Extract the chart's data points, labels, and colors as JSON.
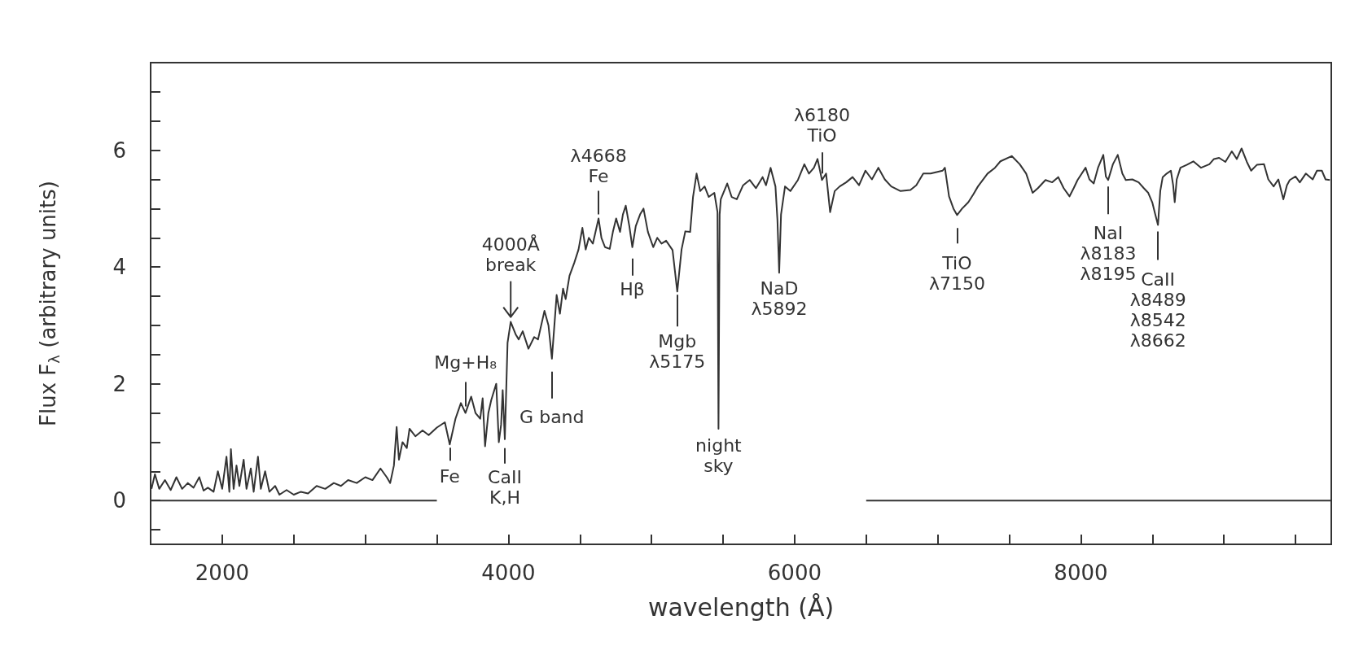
{
  "chart_data": {
    "type": "line",
    "xlabel": "wavelength (Å)",
    "ylabel": "Flux F$_{λ}$ (arbitrary units)",
    "xlim": [
      1500,
      9750
    ],
    "ylim": [
      -0.75,
      7.5
    ],
    "xticks": [
      {
        "value": 1500,
        "label": null
      },
      2000,
      {
        "value": 2500,
        "label": null
      },
      {
        "value": 3000,
        "label": null
      },
      {
        "value": 3500,
        "label": null
      },
      4000,
      {
        "value": 4500,
        "label": null
      },
      {
        "value": 5000,
        "label": null
      },
      {
        "value": 5500,
        "label": null
      },
      6000,
      {
        "value": 6500,
        "label": null
      },
      {
        "value": 7000,
        "label": null
      },
      {
        "value": 7500,
        "label": null
      },
      8000,
      {
        "value": 8500,
        "label": null
      },
      {
        "value": 9000,
        "label": null
      },
      {
        "value": 9500,
        "label": null
      }
    ],
    "yticks": [
      {
        "value": -0.5,
        "label": null
      },
      0,
      {
        "value": 0.5,
        "label": null
      },
      {
        "value": 1,
        "label": null
      },
      {
        "value": 1.5,
        "label": null
      },
      2,
      {
        "value": 2.5,
        "label": null
      },
      {
        "value": 3,
        "label": null
      },
      {
        "value": 3.5,
        "label": null
      },
      4,
      {
        "value": 4.5,
        "label": null
      },
      {
        "value": 5,
        "label": null
      },
      {
        "value": 5.5,
        "label": null
      },
      6,
      {
        "value": 6.5,
        "label": null
      },
      {
        "value": 7,
        "label": null
      }
    ],
    "marker": "none",
    "line_style": "solid",
    "grid": false,
    "series": [
      {
        "color": "#333333",
        "x": [
          1506,
          1530,
          1560,
          1600,
          1640,
          1680,
          1720,
          1760,
          1800,
          1840,
          1870,
          1900,
          1940,
          1970,
          2000,
          2030,
          2050,
          2061,
          2080,
          2100,
          2120,
          2150,
          2170,
          2200,
          2220,
          2250,
          2270,
          2300,
          2330,
          2370,
          2400,
          2450,
          2500,
          2550,
          2600,
          2660,
          2720,
          2780,
          2830,
          2880,
          2940,
          3000,
          3050,
          3106,
          3150,
          3174,
          3200,
          3219,
          3235,
          3260,
          3290,
          3309,
          3350,
          3400,
          3443,
          3500,
          3556,
          3590,
          3630,
          3668,
          3700,
          3740,
          3770,
          3803,
          3820,
          3837,
          3860,
          3880,
          3915,
          3933,
          3949,
          3960,
          3975,
          3994,
          4016,
          4050,
          4072,
          4100,
          4140,
          4180,
          4207,
          4252,
          4280,
          4304,
          4337,
          4360,
          4382,
          4400,
          4427,
          4460,
          4490,
          4517,
          4540,
          4562,
          4590,
          4630,
          4650,
          4675,
          4708,
          4730,
          4753,
          4780,
          4800,
          4820,
          4845,
          4866,
          4890,
          4920,
          4944,
          4975,
          5012,
          5040,
          5070,
          5102,
          5147,
          5180,
          5210,
          5236,
          5270,
          5290,
          5315,
          5340,
          5371,
          5400,
          5439,
          5461,
          5468,
          5476,
          5484,
          5529,
          5560,
          5596,
          5640,
          5686,
          5730,
          5776,
          5800,
          5832,
          5866,
          5880,
          5892,
          5905,
          5933,
          5970,
          6023,
          6068,
          6100,
          6135,
          6160,
          6191,
          6220,
          6248,
          6280,
          6315,
          6360,
          6405,
          6450,
          6495,
          6540,
          6585,
          6630,
          6675,
          6740,
          6809,
          6850,
          6899,
          6950,
          7034,
          7050,
          7079,
          7110,
          7135,
          7170,
          7214,
          7250,
          7281,
          7348,
          7400,
          7438,
          7517,
          7573,
          7618,
          7663,
          7700,
          7753,
          7800,
          7842,
          7880,
          7921,
          7950,
          7977,
          8033,
          8060,
          8090,
          8120,
          8157,
          8175,
          8191,
          8224,
          8258,
          8290,
          8314,
          8360,
          8404,
          8440,
          8471,
          8500,
          8520,
          8539,
          8555,
          8572,
          8600,
          8629,
          8645,
          8656,
          8670,
          8696,
          8740,
          8786,
          8840,
          8898,
          8930,
          8966,
          9010,
          9055,
          9090,
          9123,
          9160,
          9190,
          9230,
          9280,
          9310,
          9347,
          9380,
          9415,
          9440,
          9460,
          9500,
          9530,
          9572,
          9620,
          9650,
          9684,
          9710,
          9740
        ],
        "values": [
          0.2,
          0.45,
          0.2,
          0.35,
          0.18,
          0.4,
          0.2,
          0.3,
          0.22,
          0.4,
          0.17,
          0.22,
          0.15,
          0.5,
          0.2,
          0.75,
          0.15,
          0.88,
          0.2,
          0.6,
          0.25,
          0.7,
          0.2,
          0.55,
          0.15,
          0.75,
          0.2,
          0.5,
          0.15,
          0.25,
          0.1,
          0.18,
          0.1,
          0.15,
          0.12,
          0.25,
          0.2,
          0.3,
          0.25,
          0.35,
          0.3,
          0.4,
          0.35,
          0.55,
          0.4,
          0.3,
          0.6,
          1.26,
          0.7,
          1.0,
          0.9,
          1.23,
          1.1,
          1.2,
          1.12,
          1.25,
          1.34,
          0.96,
          1.4,
          1.67,
          1.5,
          1.78,
          1.5,
          1.4,
          1.75,
          0.93,
          1.5,
          1.72,
          2.0,
          1.0,
          1.3,
          1.89,
          1.05,
          2.7,
          3.06,
          2.85,
          2.76,
          2.9,
          2.6,
          2.8,
          2.76,
          3.25,
          3.0,
          2.43,
          3.52,
          3.2,
          3.63,
          3.45,
          3.85,
          4.07,
          4.3,
          4.67,
          4.3,
          4.5,
          4.4,
          4.83,
          4.5,
          4.34,
          4.31,
          4.6,
          4.83,
          4.6,
          4.9,
          5.05,
          4.7,
          4.34,
          4.7,
          4.9,
          5.0,
          4.6,
          4.34,
          4.5,
          4.4,
          4.45,
          4.29,
          3.58,
          4.3,
          4.61,
          4.6,
          5.2,
          5.6,
          5.3,
          5.38,
          5.2,
          5.27,
          4.94,
          1.23,
          4.9,
          5.16,
          5.43,
          5.2,
          5.16,
          5.4,
          5.49,
          5.35,
          5.54,
          5.4,
          5.7,
          5.38,
          4.8,
          3.9,
          4.9,
          5.38,
          5.3,
          5.49,
          5.76,
          5.6,
          5.7,
          5.85,
          5.49,
          5.6,
          4.94,
          5.3,
          5.38,
          5.45,
          5.54,
          5.4,
          5.65,
          5.5,
          5.7,
          5.5,
          5.38,
          5.3,
          5.32,
          5.4,
          5.6,
          5.6,
          5.65,
          5.7,
          5.21,
          5.0,
          4.89,
          5.0,
          5.11,
          5.25,
          5.38,
          5.6,
          5.7,
          5.81,
          5.9,
          5.76,
          5.6,
          5.27,
          5.35,
          5.49,
          5.45,
          5.54,
          5.35,
          5.21,
          5.35,
          5.49,
          5.7,
          5.5,
          5.43,
          5.7,
          5.92,
          5.55,
          5.49,
          5.76,
          5.92,
          5.6,
          5.49,
          5.5,
          5.45,
          5.35,
          5.27,
          5.1,
          4.9,
          4.72,
          5.3,
          5.54,
          5.6,
          5.65,
          5.4,
          5.11,
          5.5,
          5.7,
          5.75,
          5.81,
          5.7,
          5.76,
          5.85,
          5.87,
          5.8,
          5.98,
          5.85,
          6.03,
          5.8,
          5.65,
          5.75,
          5.76,
          5.5,
          5.38,
          5.5,
          5.16,
          5.4,
          5.49,
          5.55,
          5.45,
          5.6,
          5.5,
          5.65,
          5.65,
          5.5,
          5.49
        ]
      },
      {
        "color": "#333333",
        "x": [
          1500,
          3500,
          5000,
          6500,
          9750
        ],
        "values": [
          0,
          0,
          null,
          0,
          0
        ]
      }
    ],
    "annotations": [
      {
        "text": "Fe",
        "x": 3590,
        "y": 0.96
      },
      {
        "text": "Mg+H₈",
        "x": 3700,
        "y": 1.5
      },
      {
        "text": "CaII\nK,H",
        "x": 3975,
        "y": 1.05
      },
      {
        "text": "4000Å\nbreak",
        "x": 4016,
        "y": 3.06
      },
      {
        "text": "G band",
        "x": 4304,
        "y": 2.43
      },
      {
        "text": "λ4668\nFe",
        "x": 4630,
        "y": 4.83
      },
      {
        "text": "Hβ",
        "x": 4866,
        "y": 4.34
      },
      {
        "text": "Mgb\nλ5175",
        "x": 5180,
        "y": 3.58
      },
      {
        "text": "night\nsky",
        "x": 5468,
        "y": 1.23
      },
      {
        "text": "NaD\nλ5892",
        "x": 5892,
        "y": 3.9
      },
      {
        "text": "λ6180\nTiO",
        "x": 6191,
        "y": 5.49
      },
      {
        "text": "TiO\nλ7150",
        "x": 7135,
        "y": 4.89
      },
      {
        "text": "NaI\nλ8183\nλ8195",
        "x": 8191,
        "y": 5.49
      },
      {
        "text": "CaII\nλ8489\nλ8542\nλ8662",
        "x": 8539,
        "y": 4.72
      }
    ]
  }
}
